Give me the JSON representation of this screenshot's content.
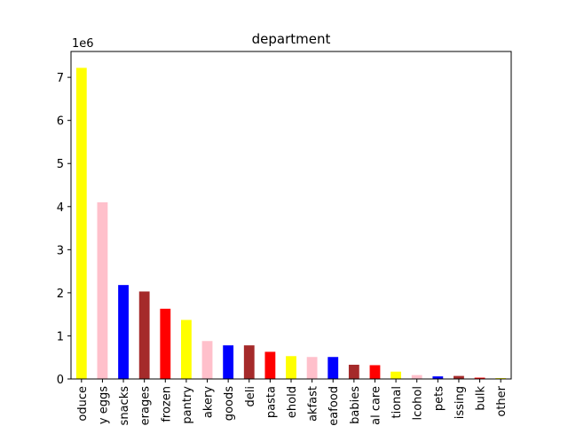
{
  "chart_data": {
    "type": "bar",
    "title": "department",
    "xlabel": "",
    "ylabel": "",
    "offset_label": "1e6",
    "ylim": [
      0,
      7.6
    ],
    "yticks": [
      0,
      1,
      2,
      3,
      4,
      5,
      6,
      7
    ],
    "categories": [
      "produce",
      "dairy eggs",
      "snacks",
      "beverages",
      "frozen",
      "pantry",
      "bakery",
      "canned goods",
      "deli",
      "dry goods pasta",
      "household",
      "breakfast",
      "meat seafood",
      "babies",
      "personal care",
      "international",
      "alcohol",
      "pets",
      "missing",
      "bulk",
      "other"
    ],
    "tick_labels": [
      "oduce",
      "y eggs",
      "snacks",
      "erages",
      "frozen",
      "pantry",
      "akery",
      "goods",
      "deli",
      "pasta",
      "ehold",
      "akfast",
      "eafood",
      "babies",
      "al care",
      "tional",
      "lcohol",
      "pets",
      "issing",
      "bulk",
      "other"
    ],
    "values": [
      7.22,
      4.1,
      2.18,
      2.03,
      1.63,
      1.37,
      0.88,
      0.78,
      0.78,
      0.63,
      0.53,
      0.51,
      0.51,
      0.33,
      0.32,
      0.17,
      0.09,
      0.06,
      0.07,
      0.03,
      0.02
    ],
    "colors": [
      "#ffff00",
      "#ffc0cb",
      "#0000ff",
      "#a52a2a",
      "#ff0000",
      "#ffff00",
      "#ffc0cb",
      "#0000ff",
      "#a52a2a",
      "#ff0000",
      "#ffff00",
      "#ffc0cb",
      "#0000ff",
      "#a52a2a",
      "#ff0000",
      "#ffff00",
      "#ffc0cb",
      "#0000ff",
      "#a52a2a",
      "#ff0000",
      "#ffff00"
    ],
    "grid": false,
    "legend": "none"
  }
}
